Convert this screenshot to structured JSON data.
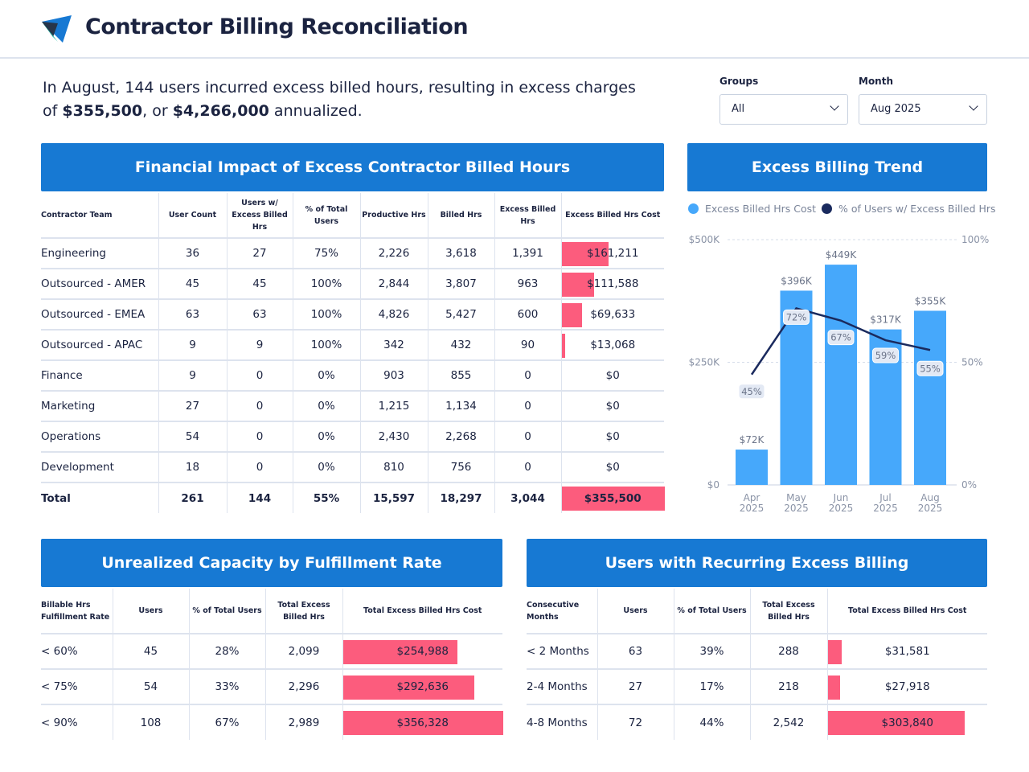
{
  "header": {
    "title": "Contractor Billing Reconciliation"
  },
  "summary": {
    "part1": "In August, 144 users incurred excess billed hours, resulting in excess charges of ",
    "amount": "$355,500",
    "part2": ", or ",
    "annualized": "$4,266,000",
    "part3": " annualized."
  },
  "filters": {
    "groups_label": "Groups",
    "groups_value": "All",
    "month_label": "Month",
    "month_value": "Aug 2025"
  },
  "financial": {
    "title": "Financial Impact of Excess Contractor Billed Hours",
    "columns": [
      "Contractor Team",
      "User Count",
      "Users w/ Excess Billed Hrs",
      "% of Total Users",
      "Productive Hrs",
      "Billed Hrs",
      "Excess Billed Hrs",
      "Excess Billed Hrs Cost"
    ],
    "rows": [
      [
        "Engineering",
        "36",
        "27",
        "75%",
        "2,226",
        "3,618",
        "1,391",
        "$161,211"
      ],
      [
        "Outsourced - AMER",
        "45",
        "45",
        "100%",
        "2,844",
        "3,807",
        "963",
        "$111,588"
      ],
      [
        "Outsourced - EMEA",
        "63",
        "63",
        "100%",
        "4,826",
        "5,427",
        "600",
        "$69,633"
      ],
      [
        "Outsourced - APAC",
        "9",
        "9",
        "100%",
        "342",
        "432",
        "90",
        "$13,068"
      ],
      [
        "Finance",
        "9",
        "0",
        "0%",
        "903",
        "855",
        "0",
        "$0"
      ],
      [
        "Marketing",
        "27",
        "0",
        "0%",
        "1,215",
        "1,134",
        "0",
        "$0"
      ],
      [
        "Operations",
        "54",
        "0",
        "0%",
        "2,430",
        "2,268",
        "0",
        "$0"
      ],
      [
        "Development",
        "18",
        "0",
        "0%",
        "810",
        "756",
        "0",
        "$0"
      ]
    ],
    "cost_values": [
      161211,
      111588,
      69633,
      13068,
      0,
      0,
      0,
      0
    ],
    "total": [
      "Total",
      "261",
      "144",
      "55%",
      "15,597",
      "18,297",
      "3,044",
      "$355,500"
    ],
    "total_value": 355500,
    "bar_color": "#fc5c7d"
  },
  "trend": {
    "title": "Excess Billing Trend"
  },
  "chart_data": {
    "type": "bar+line",
    "categories": [
      "Apr 2025",
      "May 2025",
      "Jun 2025",
      "Jul 2025",
      "Aug 2025"
    ],
    "series": [
      {
        "name": "Excess Billed Hrs Cost",
        "type": "bar",
        "axis": "left",
        "values": [
          72000,
          396000,
          449000,
          317000,
          355000
        ],
        "labels": [
          "$72K",
          "$396K",
          "$449K",
          "$317K",
          "$355K"
        ],
        "color": "#46a8fb"
      },
      {
        "name": "% of Users w/ Excess Billed Hrs",
        "type": "line",
        "axis": "right",
        "values": [
          45,
          72,
          67,
          59,
          55
        ],
        "labels": [
          "45%",
          "72%",
          "67%",
          "59%",
          "55%"
        ],
        "color": "#1a2a5e"
      }
    ],
    "yleft": {
      "ticks": [
        "$0",
        "$250K",
        "$500K"
      ],
      "range": [
        0,
        500000
      ]
    },
    "yright": {
      "ticks": [
        "0%",
        "50%",
        "100%"
      ],
      "range": [
        0,
        100
      ]
    },
    "legend": "top",
    "grid": true
  },
  "capacity": {
    "title": "Unrealized Capacity by Fulfillment Rate",
    "columns": [
      "Billable Hrs Fulfillment Rate",
      "Users",
      "% of Total Users",
      "Total Excess Billed Hrs",
      "Total Excess Billed Hrs Cost"
    ],
    "rows": [
      [
        "< 60%",
        "45",
        "28%",
        "2,099",
        "$254,988"
      ],
      [
        "< 75%",
        "54",
        "33%",
        "2,296",
        "$292,636"
      ],
      [
        "< 90%",
        "108",
        "67%",
        "2,989",
        "$356,328"
      ]
    ],
    "cost_values": [
      254988,
      292636,
      356328
    ]
  },
  "recurring": {
    "title": "Users with Recurring Excess Billing",
    "columns": [
      "Consecutive Months",
      "Users",
      "% of Total Users",
      "Total Excess Billed Hrs",
      "Total Excess Billed Hrs Cost"
    ],
    "rows": [
      [
        "< 2 Months",
        "63",
        "39%",
        "288",
        "$31,581"
      ],
      [
        "2-4 Months",
        "27",
        "17%",
        "218",
        "$27,918"
      ],
      [
        "4-8 Months",
        "72",
        "44%",
        "2,542",
        "$303,840"
      ]
    ],
    "cost_values": [
      31581,
      27918,
      303840
    ]
  }
}
